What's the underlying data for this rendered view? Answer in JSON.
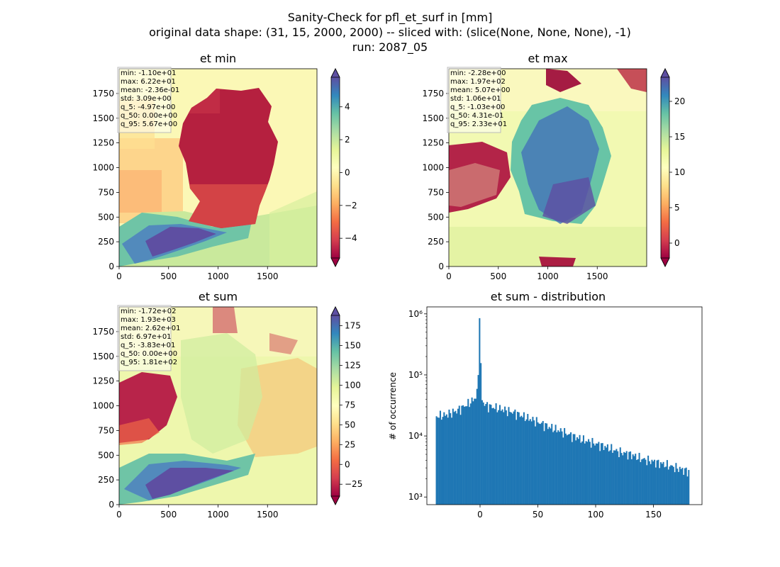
{
  "figure": {
    "title_lines": [
      "Sanity-Check for pfl_et_surf in [mm]",
      "original data shape: (31, 15, 2000, 2000) -- sliced with: (slice(None, None, None), -1)",
      "run: 2087_05"
    ]
  },
  "colormap": {
    "name": "Spectral",
    "stops": [
      "#9e0142",
      "#d53e4f",
      "#f46d43",
      "#fdae61",
      "#fee08b",
      "#ffffbf",
      "#e6f598",
      "#abdda4",
      "#66c2a5",
      "#3288bd",
      "#5e4fa2"
    ]
  },
  "chart_data": [
    {
      "type": "heatmap",
      "title": "et min",
      "xlim": [
        0,
        2000
      ],
      "ylim": [
        0,
        2000
      ],
      "xticks": [
        "0",
        "500",
        "1000",
        "1500"
      ],
      "yticks": [
        "0",
        "250",
        "500",
        "750",
        "1000",
        "1250",
        "1500",
        "1750"
      ],
      "colorbar": {
        "range": [
          -5.2,
          5.8
        ],
        "ticks": [
          -4,
          -2,
          0,
          2,
          4
        ],
        "tick_labels": [
          "−4",
          "−2",
          "0",
          "2",
          "4"
        ],
        "extend": "both"
      },
      "stats": [
        "min: -1.10e+01",
        "max: 6.22e+01",
        "mean: -2.36e-01",
        "std: 3.09e+00",
        "q_5: -4.97e+00",
        "q_50: 0.00e+00",
        "q_95: 5.67e+00"
      ]
    },
    {
      "type": "heatmap",
      "title": "et max",
      "xlim": [
        0,
        2000
      ],
      "ylim": [
        0,
        2000
      ],
      "xticks": [
        "0",
        "500",
        "1000",
        "1500"
      ],
      "yticks": [
        "0",
        "250",
        "500",
        "750",
        "1000",
        "1250",
        "1500",
        "1750"
      ],
      "colorbar": {
        "range": [
          -2.1,
          23.4
        ],
        "ticks": [
          0,
          5,
          10,
          15,
          20
        ],
        "tick_labels": [
          "0",
          "5",
          "10",
          "15",
          "20"
        ],
        "extend": "both"
      },
      "stats": [
        "min: -2.28e+00",
        "max: 1.97e+02",
        "mean: 5.07e+00",
        "std: 1.06e+01",
        "q_5: -1.03e+00",
        "q_50: 4.31e-01",
        "q_95: 2.33e+01"
      ]
    },
    {
      "type": "heatmap",
      "title": "et sum",
      "xlim": [
        0,
        2000
      ],
      "ylim": [
        0,
        2000
      ],
      "xticks": [
        "0",
        "500",
        "1000",
        "1500"
      ],
      "yticks": [
        "0",
        "250",
        "500",
        "750",
        "1000",
        "1250",
        "1500",
        "1750"
      ],
      "colorbar": {
        "range": [
          -40,
          188
        ],
        "ticks": [
          -25,
          0,
          25,
          50,
          75,
          100,
          125,
          150,
          175
        ],
        "tick_labels": [
          "−25",
          "0",
          "25",
          "50",
          "75",
          "100",
          "125",
          "150",
          "175"
        ],
        "extend": "both"
      },
      "stats": [
        "min: -1.72e+02",
        "max: 1.93e+03",
        "mean: 2.62e+01",
        "std: 6.97e+01",
        "q_5: -3.83e+01",
        "q_50: 0.00e+00",
        "q_95: 1.81e+02"
      ]
    },
    {
      "type": "bar",
      "title": "et sum - distribution",
      "ylabel": "# of occurrence",
      "xlabel": "",
      "yscale": "log",
      "xlim": [
        -46,
        192
      ],
      "ylim": [
        750,
        1300000
      ],
      "xticks": [
        0,
        50,
        100,
        150
      ],
      "xtick_labels": [
        "0",
        "50",
        "100",
        "150"
      ],
      "yticks": [
        1000,
        10000,
        100000,
        1000000
      ],
      "ytick_labels": [
        "10³",
        "10⁴",
        "10⁵",
        "10⁶"
      ],
      "color": "#1f77b4",
      "bin_range": [
        -38.3,
        181
      ],
      "bins": 200,
      "anchors": [
        [
          -38,
          21000
        ],
        [
          -30,
          22000
        ],
        [
          -20,
          26000
        ],
        [
          -10,
          34000
        ],
        [
          -5,
          40000
        ],
        [
          -2,
          55000
        ],
        [
          0,
          850000
        ],
        [
          1,
          45000
        ],
        [
          2,
          37000
        ],
        [
          5,
          32000
        ],
        [
          10,
          30000
        ],
        [
          20,
          27000
        ],
        [
          30,
          24000
        ],
        [
          40,
          20000
        ],
        [
          50,
          17000
        ],
        [
          60,
          14000
        ],
        [
          70,
          12000
        ],
        [
          80,
          10000
        ],
        [
          90,
          8500
        ],
        [
          100,
          7500
        ],
        [
          110,
          6500
        ],
        [
          120,
          5500
        ],
        [
          130,
          5000
        ],
        [
          140,
          4200
        ],
        [
          150,
          3800
        ],
        [
          160,
          3400
        ],
        [
          170,
          3000
        ],
        [
          181,
          2600
        ]
      ]
    }
  ]
}
